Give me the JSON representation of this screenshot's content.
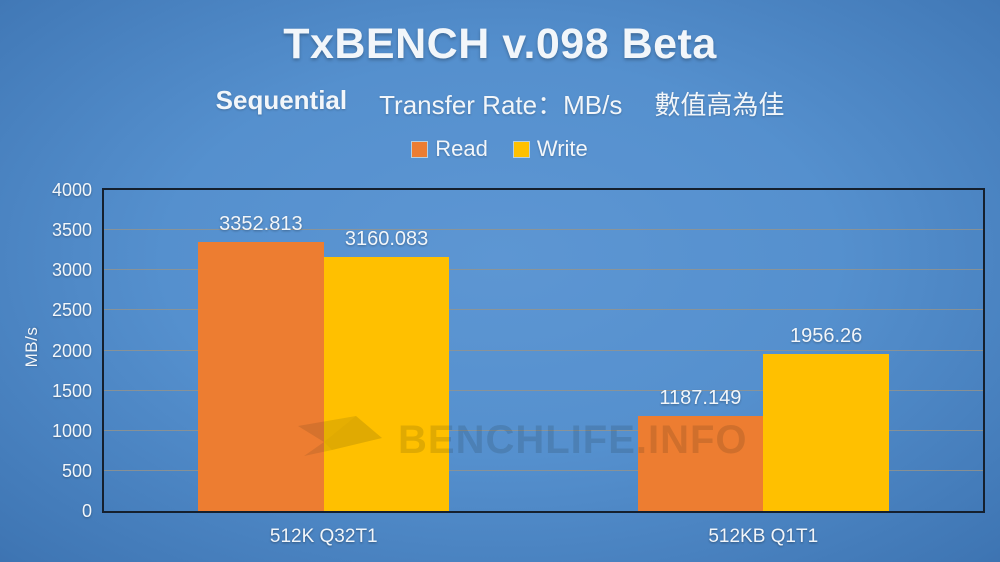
{
  "header": {
    "title": "TxBENCH v.098 Beta",
    "subtitle_test": "Sequential",
    "subtitle_metric": "Transfer Rate：MB/s",
    "subtitle_note": "數值高為佳"
  },
  "watermark": {
    "text": "BENCHLIFE.INFO",
    "icon": "paper-plane-icon"
  },
  "chart_data": {
    "type": "bar",
    "title": "TxBENCH v.098 Beta",
    "categories": [
      "512K Q32T1",
      "512KB Q1T1"
    ],
    "series": [
      {
        "name": "Read",
        "color": "#ed7d31",
        "values": [
          3352.813,
          1187.149
        ]
      },
      {
        "name": "Write",
        "color": "#ffc000",
        "values": [
          3160.083,
          1956.26
        ]
      }
    ],
    "value_labels": [
      [
        "3352.813",
        "1187.149"
      ],
      [
        "3160.083",
        "1956.26"
      ]
    ],
    "xlabel": "",
    "ylabel": "MB/s",
    "ylim": [
      0,
      4000
    ],
    "ytick_step": 500,
    "grid": "horizontal",
    "legend_position": "top"
  },
  "colors": {
    "background_center": "#5d96d3",
    "background_edge": "#1c4b88",
    "read_bar": "#ed7d31",
    "write_bar": "#ffc000",
    "gridline": "#96948a",
    "plot_border": "#15202e",
    "text": "#f2f6fa"
  }
}
